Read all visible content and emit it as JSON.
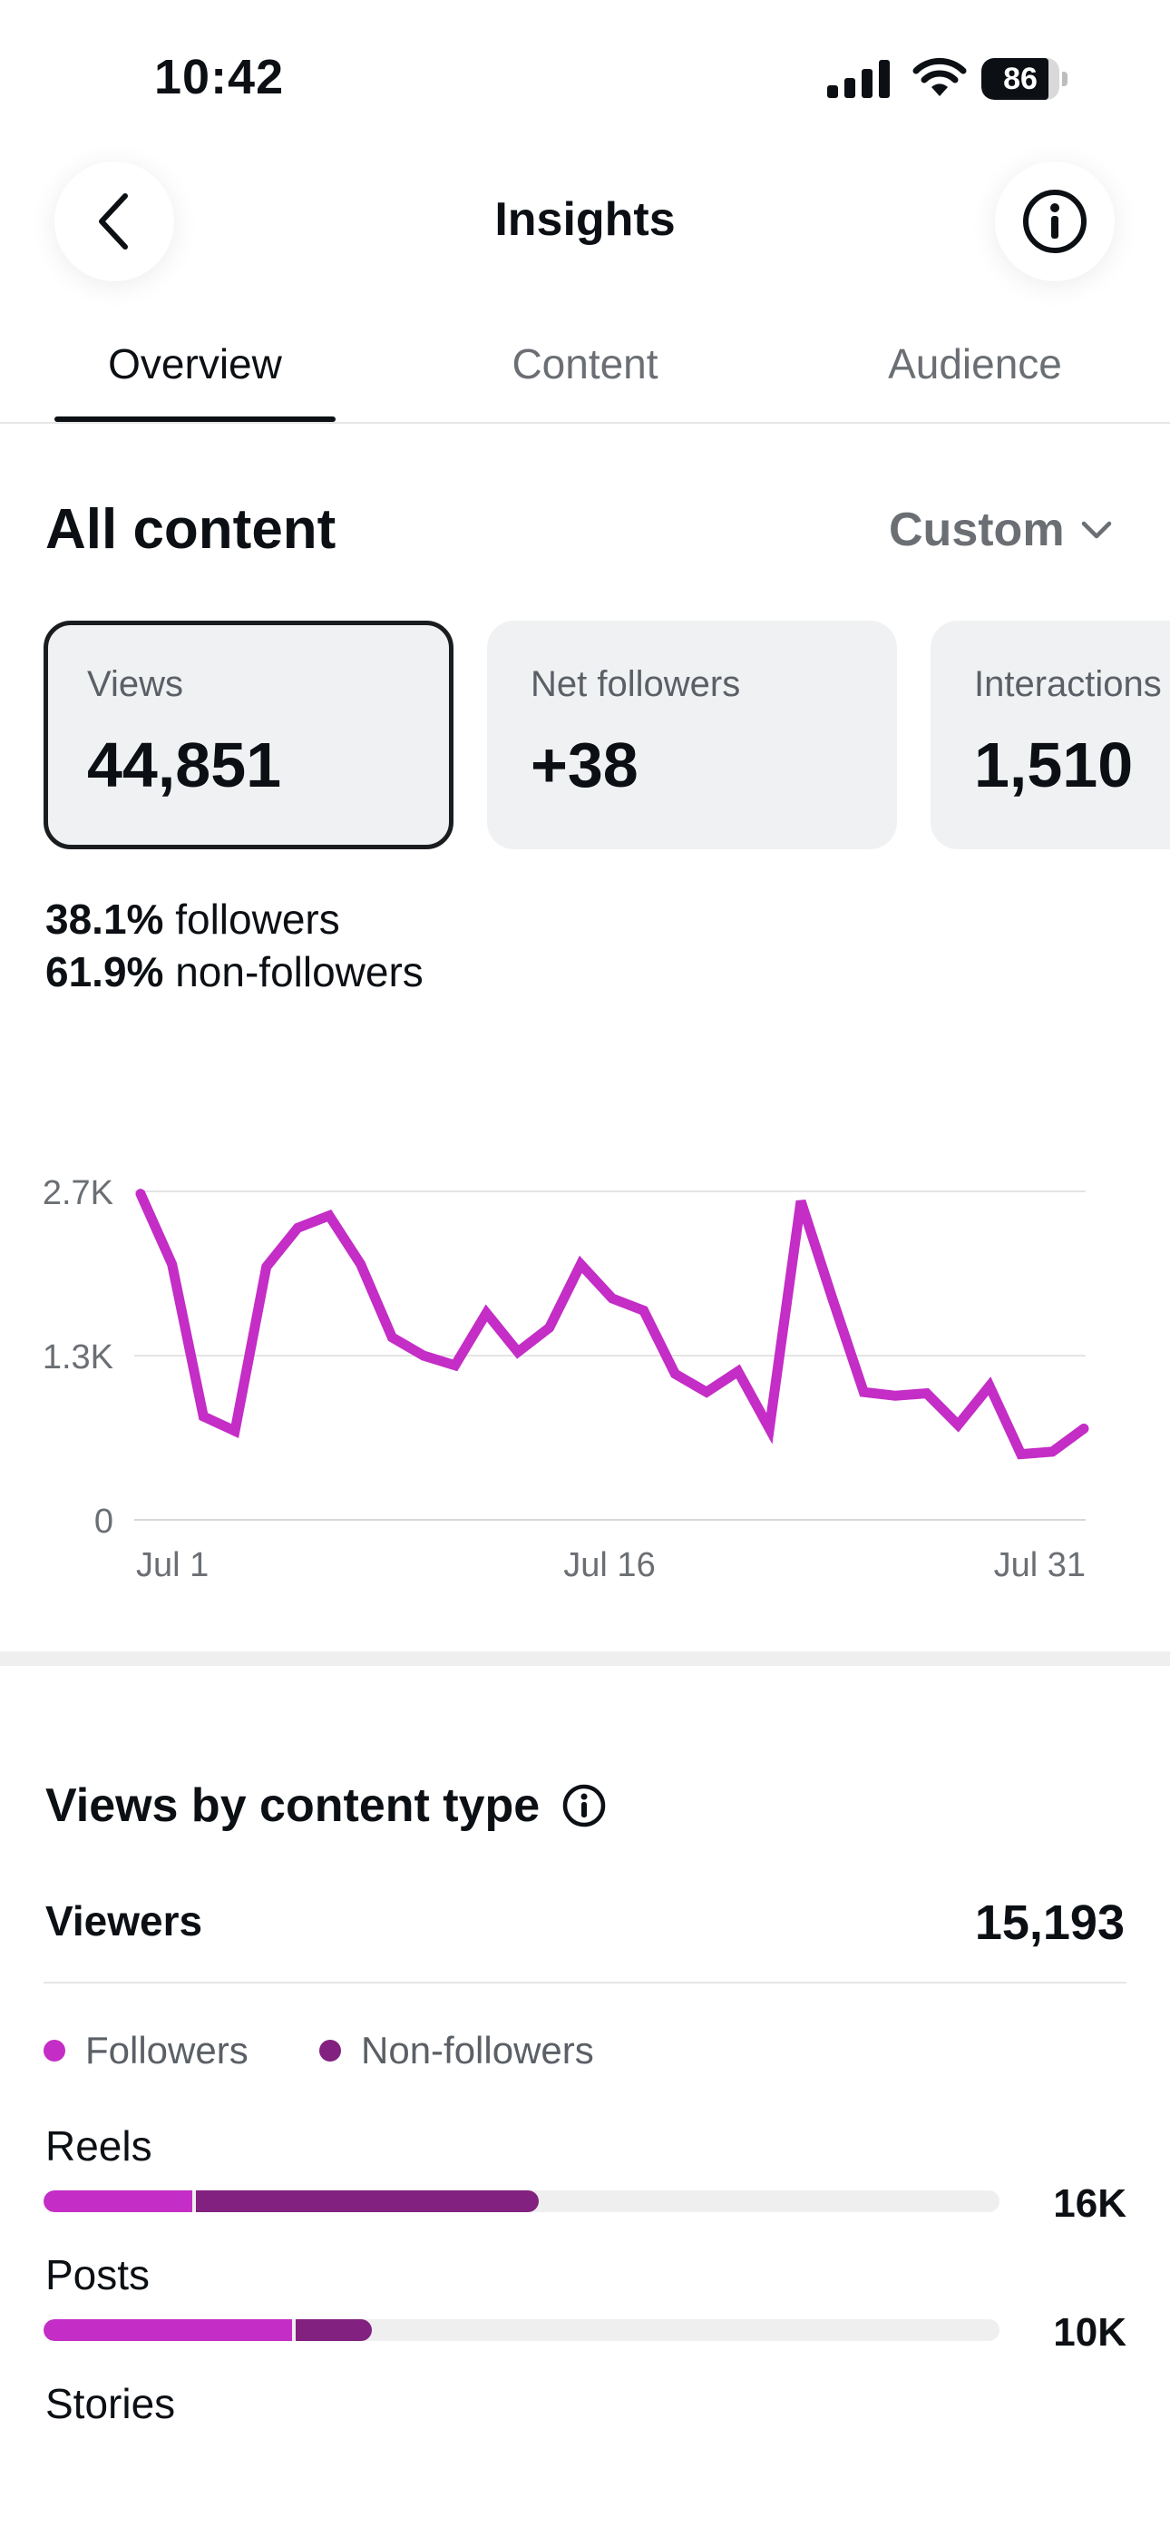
{
  "status_bar": {
    "time": "10:42",
    "battery": "86"
  },
  "header": {
    "title": "Insights"
  },
  "tabs": [
    {
      "label": "Overview",
      "active": true
    },
    {
      "label": "Content",
      "active": false
    },
    {
      "label": "Audience",
      "active": false
    }
  ],
  "all_content": {
    "title": "All content",
    "range_label": "Custom",
    "cards": [
      {
        "label": "Views",
        "value": "44,851",
        "selected": true
      },
      {
        "label": "Net followers",
        "value": "+38",
        "selected": false
      },
      {
        "label": "Interactions",
        "value": "1,510",
        "selected": false
      }
    ],
    "split": [
      {
        "pct": "38.1%",
        "label": "followers"
      },
      {
        "pct": "61.9%",
        "label": "non-followers"
      }
    ]
  },
  "colors": {
    "accent": "#c42dc6",
    "followers": "#c42dc6",
    "non_followers": "#82217f",
    "text_primary": "#0c1014",
    "text_secondary": "#6b6f74"
  },
  "chart_data": {
    "type": "line",
    "x_tick_labels": [
      "Jul 1",
      "Jul 16",
      "Jul 31"
    ],
    "y_tick_labels": [
      "2.7K",
      "1.3K",
      "0"
    ],
    "ylim": [
      0,
      2700
    ],
    "grid": true,
    "series": [
      {
        "values": [
          2680,
          2100,
          850,
          730,
          2080,
          2400,
          2500,
          2100,
          1500,
          1350,
          1270,
          1700,
          1380,
          1580,
          2100,
          1820,
          1720,
          1200,
          1050,
          1220,
          750,
          2620,
          1820,
          1050,
          1020,
          1040,
          780,
          1100,
          540,
          560,
          750
        ]
      }
    ]
  },
  "views_by_type": {
    "title": "Views by content type",
    "viewers_label": "Viewers",
    "viewers_value": "15,193",
    "legend": [
      {
        "label": "Followers",
        "color": "#c42dc6"
      },
      {
        "label": "Non-followers",
        "color": "#82217f"
      }
    ],
    "rows": [
      {
        "label": "Reels",
        "value": "16K",
        "followers_fraction": 0.156,
        "non_followers_fraction": 0.362
      },
      {
        "label": "Posts",
        "value": "10K",
        "followers_fraction": 0.26,
        "non_followers_fraction": 0.083
      },
      {
        "label": "Stories"
      }
    ]
  }
}
